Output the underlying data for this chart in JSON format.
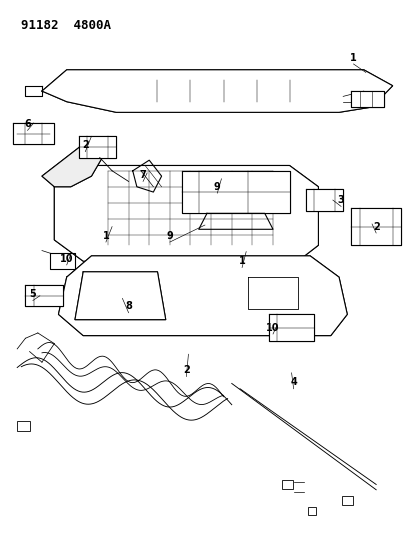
{
  "title": "91182  4800A",
  "bg_color": "#ffffff",
  "line_color": "#000000",
  "fig_width": 4.14,
  "fig_height": 5.33,
  "dpi": 100
}
